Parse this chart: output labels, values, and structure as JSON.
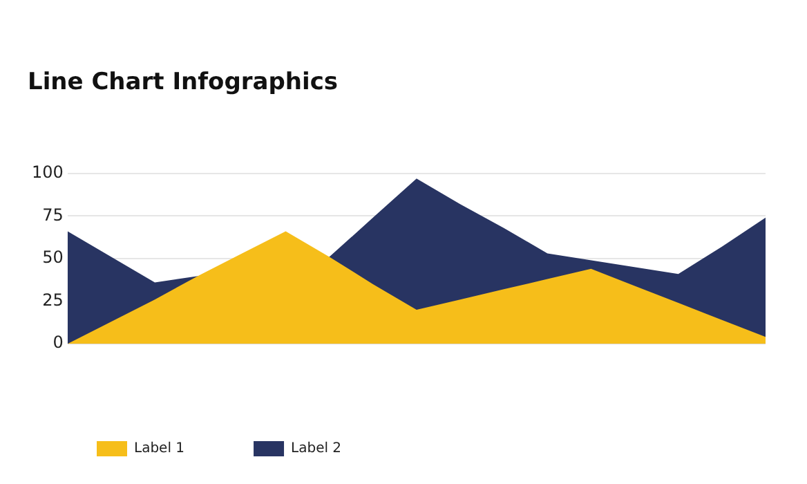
{
  "chart_data": {
    "type": "area",
    "title": "Line Chart Infographics",
    "categories": [
      null,
      null,
      null,
      null,
      null,
      null,
      null,
      null,
      null,
      null,
      null,
      null,
      null,
      null,
      null,
      null,
      null
    ],
    "series": [
      {
        "name": "Label 1",
        "color": "#f6be1a",
        "values": [
          0,
          13,
          26,
          40,
          53,
          66,
          51,
          35,
          20,
          26,
          32,
          38,
          44,
          34,
          24,
          14,
          4
        ]
      },
      {
        "name": "Label 2",
        "color": "#283462",
        "values": [
          66,
          51,
          36,
          null,
          null,
          null,
          51,
          74,
          97,
          82,
          68,
          53,
          null,
          null,
          41,
          57,
          74
        ]
      }
    ],
    "ylim": [
      0,
      100
    ],
    "yticks": [
      0,
      25,
      50,
      75,
      100
    ],
    "grid": "y",
    "legend": "bottom left"
  }
}
